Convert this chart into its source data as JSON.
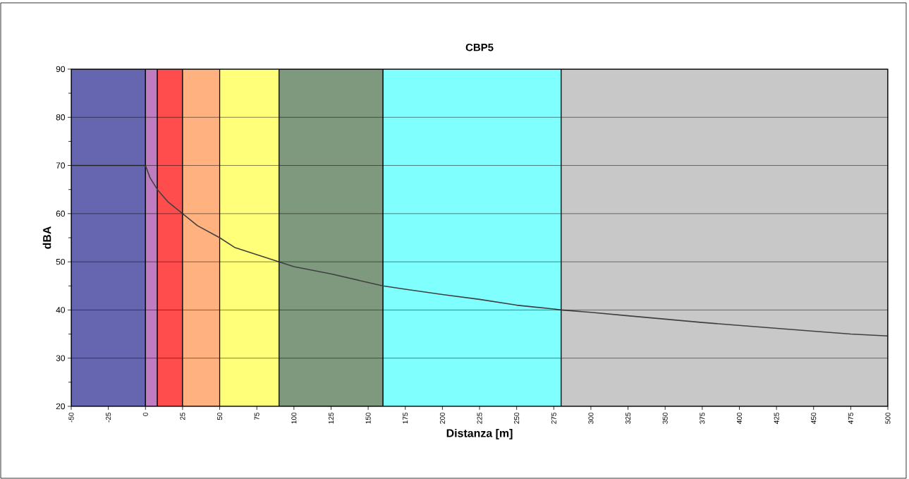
{
  "chart_data": {
    "type": "line",
    "title": "CBP5",
    "xlabel": "Distanza [m]",
    "ylabel": "dBA",
    "x": [
      -50,
      0,
      3,
      8,
      15,
      25,
      35,
      50,
      60,
      75,
      90,
      100,
      125,
      150,
      160,
      175,
      200,
      225,
      250,
      275,
      280,
      300,
      325,
      350,
      375,
      400,
      425,
      450,
      475,
      500
    ],
    "series": [
      {
        "color": "#404040",
        "values": [
          70,
          70,
          67.5,
          65,
          62.5,
          60,
          57.5,
          55,
          53,
          51.5,
          50,
          49,
          47.5,
          45.7,
          45,
          44.3,
          43.2,
          42.2,
          41,
          40.2,
          40,
          39.5,
          38.8,
          38.1,
          37.4,
          36.8,
          36.2,
          35.6,
          35,
          34.6
        ]
      }
    ],
    "bands": [
      {
        "axis": "x",
        "from": -50,
        "to": 0,
        "color": "#6666b0"
      },
      {
        "axis": "x",
        "from": 0,
        "to": 8,
        "color": "#c07cc0"
      },
      {
        "axis": "x",
        "from": 8,
        "to": 25,
        "color": "#ff4d4d"
      },
      {
        "axis": "x",
        "from": 25,
        "to": 50,
        "color": "#ffb27f"
      },
      {
        "axis": "x",
        "from": 50,
        "to": 90,
        "color": "#ffff7a"
      },
      {
        "axis": "x",
        "from": 90,
        "to": 160,
        "color": "#7f997f"
      },
      {
        "axis": "x",
        "from": 160,
        "to": 280,
        "color": "#80ffff"
      },
      {
        "axis": "x",
        "from": 280,
        "to": 500,
        "color": "#c8c8c8"
      }
    ],
    "xlim": [
      -50,
      500
    ],
    "ylim": [
      20,
      90
    ],
    "xticks": [
      -50,
      -25,
      0,
      25,
      50,
      75,
      100,
      125,
      150,
      175,
      200,
      225,
      250,
      275,
      300,
      325,
      350,
      375,
      400,
      425,
      450,
      475,
      500
    ],
    "yticks": [
      20,
      30,
      40,
      50,
      60,
      70,
      80,
      90
    ],
    "grid": "y",
    "marker": "none",
    "line_style": "solid"
  }
}
